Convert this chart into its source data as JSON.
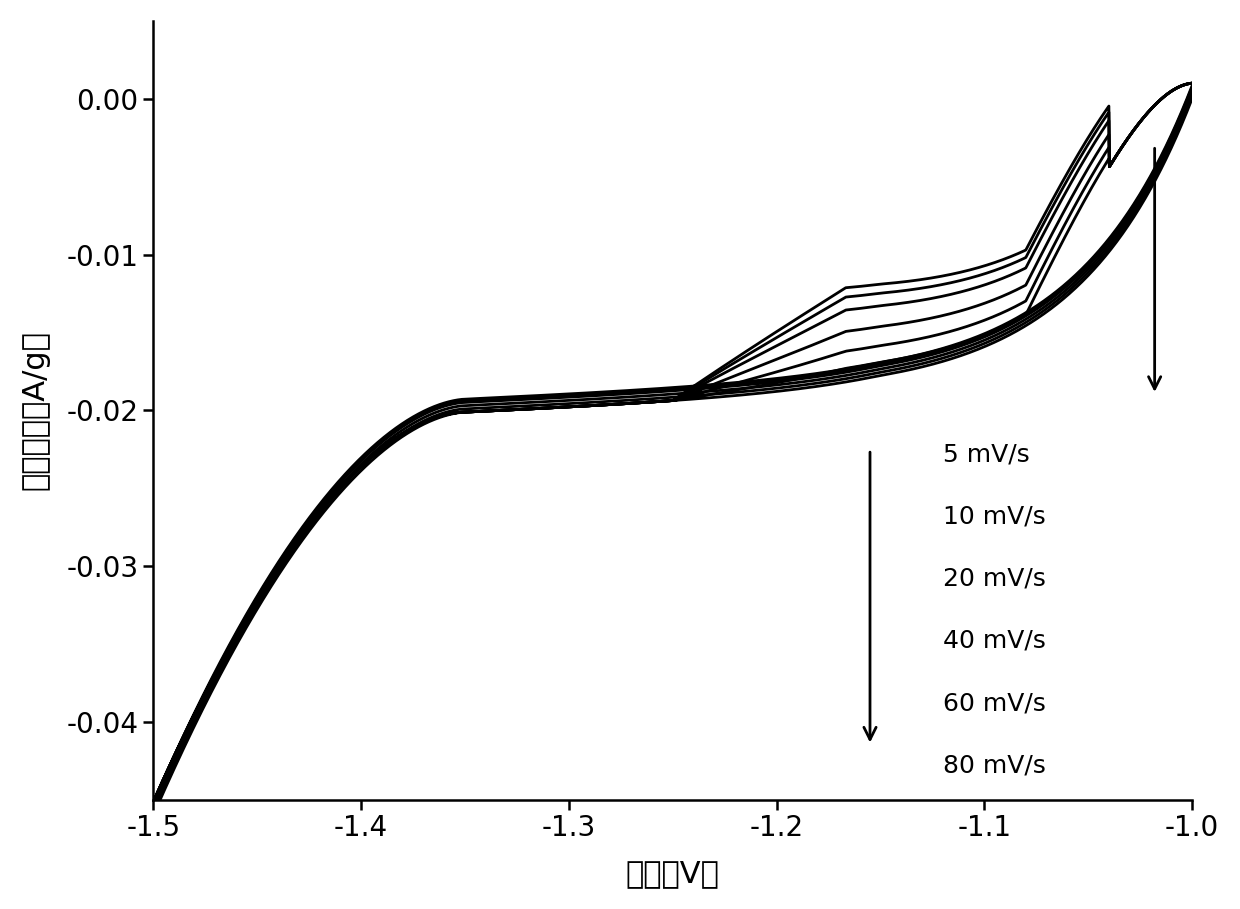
{
  "xlabel": "电位（V）",
  "ylabel": "电流密度（A/g）",
  "xlim": [
    -1.5,
    -1.0
  ],
  "ylim": [
    -0.045,
    0.005
  ],
  "xticks": [
    -1.5,
    -1.4,
    -1.3,
    -1.2,
    -1.1,
    -1.0
  ],
  "yticks": [
    0.0,
    -0.01,
    -0.02,
    -0.03,
    -0.04
  ],
  "scan_rates": [
    5,
    10,
    20,
    40,
    60,
    80
  ],
  "legend_labels": [
    "5 mV/s",
    "10 mV/s",
    "20 mV/s",
    "40 mV/s",
    "60 mV/s",
    "80 mV/s"
  ],
  "line_color": "#000000",
  "background_color": "#ffffff",
  "xlabel_fontsize": 22,
  "ylabel_fontsize": 22,
  "tick_fontsize": 20,
  "legend_fontsize": 18,
  "linewidth": 2.0
}
